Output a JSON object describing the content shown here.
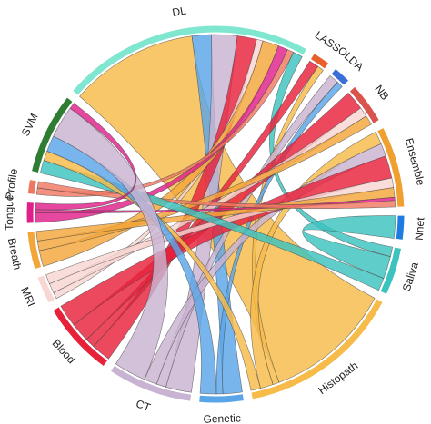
{
  "chart_data": {
    "type": "chord",
    "nodes": [
      {
        "name": "DL",
        "color": "#7fe6cf"
      },
      {
        "name": "LASSO",
        "color": "#e8602c"
      },
      {
        "name": "LDA",
        "color": "#3b6fd6"
      },
      {
        "name": "NB",
        "color": "#d9534f"
      },
      {
        "name": "Ensemble",
        "color": "#f0a030"
      },
      {
        "name": "Nnet",
        "color": "#1e7be0"
      },
      {
        "name": "Saliva",
        "color": "#3cc3c0"
      },
      {
        "name": "Histopath",
        "color": "#f6bb48"
      },
      {
        "name": "Genetic",
        "color": "#5aa5e8"
      },
      {
        "name": "CT",
        "color": "#c9b3d2"
      },
      {
        "name": "Blood",
        "color": "#e8213a"
      },
      {
        "name": "MRI",
        "color": "#f8d6d2"
      },
      {
        "name": "Breath",
        "color": "#f3a63a"
      },
      {
        "name": "Tongue",
        "color": "#e0208a"
      },
      {
        "name": "Profile",
        "color": "#f07862"
      },
      {
        "name": "SVM",
        "color": "#2e7d32"
      }
    ],
    "links": [
      {
        "source": "DL",
        "target": "Histopath",
        "value": 40
      },
      {
        "source": "DL",
        "target": "Genetic",
        "value": 6
      },
      {
        "source": "DL",
        "target": "CT",
        "value": 8
      },
      {
        "source": "DL",
        "target": "Blood",
        "value": 6
      },
      {
        "source": "DL",
        "target": "MRI",
        "value": 2
      },
      {
        "source": "DL",
        "target": "Breath",
        "value": 5
      },
      {
        "source": "DL",
        "target": "Tongue",
        "value": 3
      },
      {
        "source": "DL",
        "target": "Profile",
        "value": 2
      },
      {
        "source": "DL",
        "target": "Saliva",
        "value": 3
      },
      {
        "source": "LASSO",
        "target": "Blood",
        "value": 3
      },
      {
        "source": "LASSO",
        "target": "Histopath",
        "value": 2
      },
      {
        "source": "LDA",
        "target": "CT",
        "value": 3
      },
      {
        "source": "LDA",
        "target": "Genetic",
        "value": 2
      },
      {
        "source": "NB",
        "target": "Blood",
        "value": 6
      },
      {
        "source": "NB",
        "target": "MRI",
        "value": 3
      },
      {
        "source": "NB",
        "target": "Breath",
        "value": 3
      },
      {
        "source": "Ensemble",
        "target": "Histopath",
        "value": 4
      },
      {
        "source": "Ensemble",
        "target": "CT",
        "value": 4
      },
      {
        "source": "Ensemble",
        "target": "Blood",
        "value": 7
      },
      {
        "source": "Ensemble",
        "target": "MRI",
        "value": 3
      },
      {
        "source": "Ensemble",
        "target": "Breath",
        "value": 3
      },
      {
        "source": "Ensemble",
        "target": "Tongue",
        "value": 1
      },
      {
        "source": "Ensemble",
        "target": "Profile",
        "value": 2
      },
      {
        "source": "Nnet",
        "target": "Saliva",
        "value": 7
      },
      {
        "source": "SVM",
        "target": "Saliva",
        "value": 4
      },
      {
        "source": "SVM",
        "target": "Histopath",
        "value": 3
      },
      {
        "source": "SVM",
        "target": "Genetic",
        "value": 5
      },
      {
        "source": "SVM",
        "target": "CT",
        "value": 10
      },
      {
        "source": "SVM",
        "target": "Tongue",
        "value": 2
      }
    ]
  }
}
